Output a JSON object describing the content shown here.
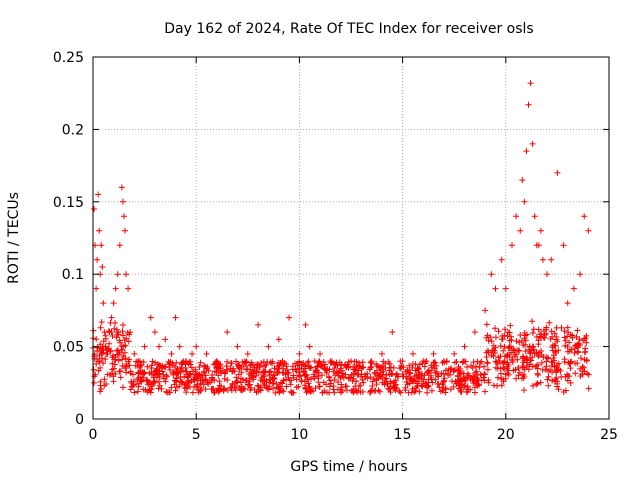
{
  "chart_data": {
    "type": "scatter",
    "title": "Day 162 of 2024, Rate Of TEC Index for receiver osls",
    "xlabel": "GPS time / hours",
    "ylabel": "ROTI / TECUs",
    "xlim": [
      0,
      25
    ],
    "ylim": [
      0,
      0.25
    ],
    "xticks": [
      0,
      5,
      10,
      15,
      20,
      25
    ],
    "xtick_labels": [
      "0",
      "5",
      "10",
      "15",
      "20",
      "25"
    ],
    "yticks": [
      0,
      0.05,
      0.1,
      0.15,
      0.2,
      0.25
    ],
    "ytick_labels": [
      "0",
      "0.05",
      "0.1",
      "0.15",
      "0.2",
      "0.25"
    ],
    "grid": true,
    "marker": "plus",
    "color": "#ff0000",
    "series": [
      {
        "name": "ROTI",
        "x": [
          0.05,
          0.1,
          0.15,
          0.2,
          0.25,
          0.3,
          0.35,
          0.4,
          0.45,
          0.5,
          0.55,
          0.6,
          0.7,
          0.8,
          0.9,
          1.0,
          1.1,
          1.2,
          1.3,
          1.4,
          1.45,
          1.5,
          1.55,
          1.6,
          1.7,
          1.8,
          2.0,
          2.2,
          2.5,
          2.8,
          3.0,
          3.2,
          3.5,
          3.8,
          4.0,
          4.2,
          4.5,
          4.8,
          5.0,
          5.5,
          6.0,
          6.5,
          7.0,
          7.5,
          8.0,
          8.5,
          9.0,
          9.5,
          10.0,
          10.3,
          10.5,
          11.0,
          11.5,
          12.0,
          12.5,
          13.0,
          13.5,
          14.0,
          14.5,
          15.0,
          15.5,
          16.0,
          16.5,
          17.0,
          17.5,
          18.0,
          18.5,
          19.0,
          19.3,
          19.5,
          19.8,
          20.0,
          20.3,
          20.5,
          20.7,
          20.8,
          20.9,
          21.0,
          21.1,
          21.2,
          21.3,
          21.4,
          21.5,
          21.6,
          21.7,
          21.8,
          22.0,
          22.2,
          22.5,
          22.8,
          23.0,
          23.3,
          23.6,
          23.8,
          24.0
        ],
        "y": [
          0.145,
          0.12,
          0.09,
          0.11,
          0.155,
          0.13,
          0.1,
          0.12,
          0.105,
          0.08,
          0.06,
          0.05,
          0.045,
          0.06,
          0.07,
          0.08,
          0.09,
          0.1,
          0.12,
          0.16,
          0.15,
          0.14,
          0.13,
          0.1,
          0.09,
          0.06,
          0.045,
          0.04,
          0.05,
          0.07,
          0.06,
          0.05,
          0.055,
          0.045,
          0.07,
          0.05,
          0.04,
          0.045,
          0.05,
          0.045,
          0.04,
          0.06,
          0.05,
          0.045,
          0.065,
          0.05,
          0.055,
          0.07,
          0.045,
          0.065,
          0.05,
          0.045,
          0.04,
          0.035,
          0.04,
          0.035,
          0.04,
          0.045,
          0.06,
          0.04,
          0.045,
          0.04,
          0.045,
          0.04,
          0.045,
          0.05,
          0.06,
          0.075,
          0.1,
          0.09,
          0.11,
          0.09,
          0.12,
          0.14,
          0.13,
          0.165,
          0.15,
          0.185,
          0.217,
          0.232,
          0.19,
          0.14,
          0.12,
          0.12,
          0.13,
          0.11,
          0.1,
          0.11,
          0.17,
          0.12,
          0.08,
          0.09,
          0.1,
          0.14,
          0.13
        ]
      }
    ]
  }
}
